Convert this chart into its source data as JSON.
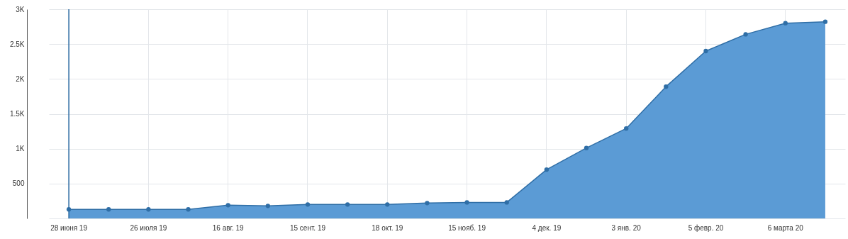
{
  "chart_data": {
    "type": "area",
    "categories": [
      "28 июня 19",
      null,
      "26 июля 19",
      null,
      "16 авг. 19",
      null,
      "15 сент. 19",
      null,
      "18 окт. 19",
      null,
      "15 нояб. 19",
      null,
      "4 дек. 19",
      null,
      "3 янв. 20",
      null,
      "5 февр. 20",
      null,
      "6 марта 20",
      null
    ],
    "series": [
      {
        "color": "#5b9bd5",
        "values": [
          130,
          130,
          130,
          130,
          190,
          180,
          200,
          200,
          200,
          220,
          230,
          230,
          700,
          1010,
          1290,
          1890,
          2400,
          2640,
          2800,
          2820
        ]
      }
    ],
    "ylim": [
      0,
      3000
    ],
    "yticks": [
      {
        "value": 0,
        "label": null
      },
      500,
      {
        "value": 1000,
        "label": "1K"
      },
      {
        "value": 1500,
        "label": "1.5K"
      },
      {
        "value": 2000,
        "label": "2K"
      },
      {
        "value": 2500,
        "label": "2.5K"
      },
      {
        "value": 3000,
        "label": "3K"
      }
    ],
    "grid": true,
    "marker": "circle",
    "ref_lines": [
      {
        "axis": "x",
        "value": "28 июня 19",
        "color": "#2e6da4"
      }
    ]
  }
}
